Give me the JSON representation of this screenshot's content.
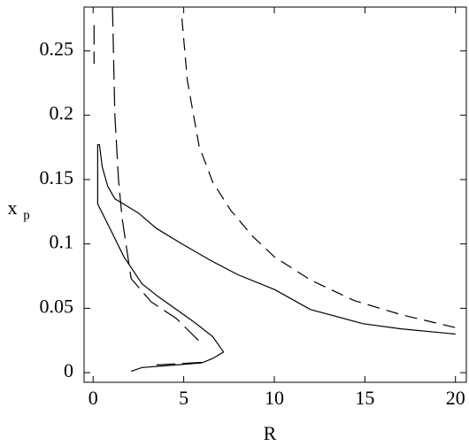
{
  "chart_data": {
    "type": "line",
    "x_label": "R",
    "y_label": "x",
    "y_label_subscript": "p",
    "xlim": [
      -0.5,
      20.6
    ],
    "ylim": [
      -0.0075,
      0.284
    ],
    "xticks": [
      0,
      5,
      10,
      15,
      20
    ],
    "yticks": [
      0,
      0.05,
      0.1,
      0.15,
      0.2,
      0.25
    ],
    "series": [
      {
        "color": "#000000",
        "dash": "solid",
        "x": [
          20,
          17,
          14.9,
          12,
          10,
          8,
          6.5,
          4.9,
          3.5,
          2.5,
          1.8,
          1.2,
          0.8,
          0.5,
          0.35,
          0.25,
          0.25,
          0.5,
          1,
          1.7,
          2.7,
          3.6,
          4.6,
          5.6,
          6.6,
          7.2,
          6.6,
          6,
          4.6,
          2.7,
          2.1
        ],
        "values": [
          0.03,
          0.034,
          0.038,
          0.049,
          0.0646,
          0.076,
          0.087,
          0.1,
          0.112,
          0.124,
          0.13,
          0.135,
          0.145,
          0.16,
          0.177,
          0.177,
          0.131,
          0.124,
          0.11,
          0.09,
          0.069,
          0.059,
          0.049,
          0.039,
          0.028,
          0.016,
          0.011,
          0.0076,
          0.006,
          0.004,
          0.001
        ]
      },
      {
        "color": "#000000",
        "dash": "long",
        "x": [
          0.05,
          0.05,
          null,
          1.07,
          1.2,
          1.4,
          1.6,
          2.1,
          3.2,
          4.6,
          6.1,
          null,
          6,
          3.5
        ],
        "values": [
          0.27,
          0.24,
          null,
          0.284,
          0.2,
          0.15,
          0.12,
          0.073,
          0.055,
          0.042,
          0.021,
          null,
          0.008,
          0.006
        ]
      },
      {
        "color": "#000000",
        "dash": "medium",
        "x": [
          4.9,
          5.2,
          5.85,
          6.6,
          7.6,
          8.8,
          10,
          12,
          14.4,
          17,
          20
        ],
        "values": [
          0.275,
          0.227,
          0.176,
          0.148,
          0.126,
          0.106,
          0.09,
          0.072,
          0.056,
          0.045,
          0.035
        ]
      }
    ]
  }
}
